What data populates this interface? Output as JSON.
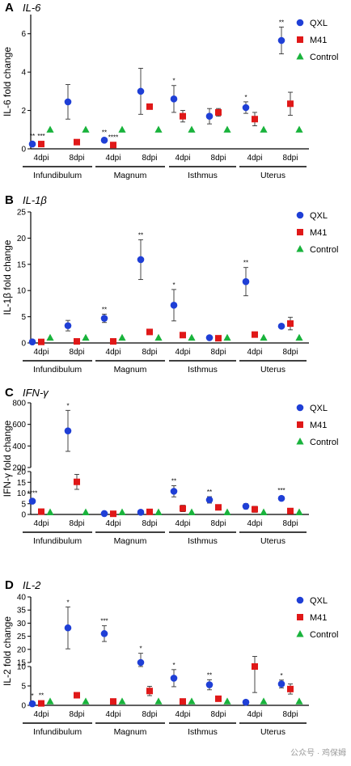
{
  "figure": {
    "watermark": "公众号 · 鸡保姆",
    "colors": {
      "QXL": "#1f3fd6",
      "M41": "#e01818",
      "Control": "#19b33c"
    }
  },
  "chart_data": [
    {
      "type": "scatter",
      "panel": "A",
      "title": "IL-6",
      "ylabel": "IL-6 fold change",
      "ylim": [
        0,
        7
      ],
      "yticks": [
        0,
        2,
        4,
        6
      ],
      "groups": [
        "Infundibulum",
        "Magnum",
        "Isthmus",
        "Uterus"
      ],
      "timepoints": [
        "4dpi",
        "8dpi"
      ],
      "legend": [
        "QXL",
        "M41",
        "Control"
      ],
      "series": [
        {
          "name": "QXL",
          "values": [
            0.25,
            2.45,
            0.45,
            3.0,
            2.6,
            1.7,
            2.15,
            5.65
          ],
          "errors": [
            0.05,
            0.9,
            0.1,
            1.2,
            0.7,
            0.4,
            0.3,
            0.7
          ],
          "significance": [
            "**",
            "",
            "**",
            "",
            "*",
            "",
            "*",
            "**"
          ]
        },
        {
          "name": "M41",
          "values": [
            0.25,
            0.35,
            0.2,
            2.2,
            1.7,
            1.9,
            1.55,
            2.35
          ],
          "errors": [
            0.05,
            0,
            0.05,
            0,
            0.3,
            0.2,
            0.35,
            0.6
          ],
          "significance": [
            "***",
            "",
            "****",
            "",
            "",
            "",
            "",
            ""
          ]
        },
        {
          "name": "Control",
          "values": [
            1,
            1,
            1,
            1,
            1,
            1,
            1,
            1
          ]
        }
      ]
    },
    {
      "type": "scatter",
      "panel": "B",
      "title": "IL-1β",
      "ylabel": "IL-1β fold change",
      "ylim": [
        0,
        25
      ],
      "yticks": [
        0,
        5,
        10,
        15,
        20,
        25
      ],
      "groups": [
        "Infundibulum",
        "Magnum",
        "Isthmus",
        "Uterus"
      ],
      "timepoints": [
        "4dpi",
        "8dpi"
      ],
      "legend": [
        "QXL",
        "M41",
        "Control"
      ],
      "series": [
        {
          "name": "QXL",
          "values": [
            0.2,
            3.3,
            4.7,
            15.9,
            7.2,
            1.0,
            11.7,
            3.2
          ],
          "errors": [
            0.1,
            1.0,
            0.8,
            3.8,
            3.0,
            0.2,
            2.7,
            0.4
          ],
          "significance": [
            "",
            "",
            "**",
            "**",
            "*",
            "",
            "**",
            ""
          ]
        },
        {
          "name": "M41",
          "values": [
            0.2,
            0.3,
            0.3,
            2.1,
            1.5,
            0.9,
            1.6,
            3.7
          ],
          "errors": [
            0,
            0,
            0,
            0,
            0,
            0,
            0,
            1.2
          ],
          "significance": [
            "",
            "",
            "",
            "",
            "",
            "",
            "",
            ""
          ]
        },
        {
          "name": "Control",
          "values": [
            1,
            1,
            1,
            1,
            1,
            1,
            1,
            1
          ]
        }
      ]
    },
    {
      "type": "scatter",
      "panel": "C",
      "title": "IFN-γ",
      "ylabel": "IFN-γ fold change",
      "y_break": {
        "lower_max": 20,
        "upper_min": 200,
        "upper_max": 800
      },
      "yticks": [
        0,
        5,
        10,
        15,
        20,
        200,
        400,
        600,
        800
      ],
      "groups": [
        "Infundibulum",
        "Magnum",
        "Isthmus",
        "Uterus"
      ],
      "timepoints": [
        "4dpi",
        "8dpi"
      ],
      "legend": [
        "QXL",
        "M41",
        "Control"
      ],
      "series": [
        {
          "name": "QXL",
          "values": [
            6.2,
            540,
            0.4,
            1.0,
            10.8,
            6.8,
            3.8,
            7.5
          ],
          "errors": [
            0.3,
            190,
            0.2,
            0.3,
            2.6,
            1.5,
            1.2,
            0.9
          ],
          "significance": [
            "****",
            "*",
            "",
            "",
            "**",
            "**",
            "",
            "***"
          ]
        },
        {
          "name": "M41",
          "values": [
            1.3,
            15.2,
            0.3,
            1.2,
            2.8,
            3.3,
            2.4,
            1.6
          ],
          "errors": [
            0.2,
            3.5,
            0.3,
            0.4,
            1.5,
            0.3,
            1.4,
            0.3
          ],
          "significance": [
            "",
            "",
            "",
            "",
            "",
            "",
            "",
            ""
          ]
        },
        {
          "name": "Control",
          "values": [
            1,
            1,
            1,
            1,
            1,
            1,
            1,
            1
          ]
        }
      ]
    },
    {
      "type": "scatter",
      "panel": "D",
      "title": "IL-2",
      "ylabel": "IL-2 fold change",
      "y_break": {
        "lower_max": 10,
        "upper_min": 15,
        "upper_max": 40
      },
      "yticks": [
        0,
        5,
        10,
        15,
        20,
        25,
        30,
        35,
        40
      ],
      "groups": [
        "Infundibulum",
        "Magnum",
        "Isthmus",
        "Uterus"
      ],
      "timepoints": [
        "4dpi",
        "8dpi"
      ],
      "legend": [
        "QXL",
        "M41",
        "Control"
      ],
      "series": [
        {
          "name": "QXL",
          "values": [
            0.4,
            28.2,
            26.0,
            14.5,
            7.0,
            5.3,
            0.8,
            5.5
          ],
          "errors": [
            0.2,
            8.0,
            3.0,
            4.0,
            2.2,
            1.3,
            0.2,
            1.0
          ],
          "significance": [
            "*",
            "*",
            "***",
            "*",
            "*",
            "**",
            "",
            "*"
          ]
        },
        {
          "name": "M41",
          "values": [
            0.5,
            2.6,
            1.0,
            3.7,
            1.0,
            1.7,
            10.3,
            4.2
          ],
          "errors": [
            0.2,
            0,
            0,
            1.2,
            0,
            0,
            7.0,
            1.3
          ],
          "significance": [
            "**",
            "",
            "",
            "",
            "",
            "",
            "",
            ""
          ]
        },
        {
          "name": "Control",
          "values": [
            1,
            1,
            1,
            1,
            1,
            1,
            1,
            1
          ]
        }
      ]
    }
  ]
}
